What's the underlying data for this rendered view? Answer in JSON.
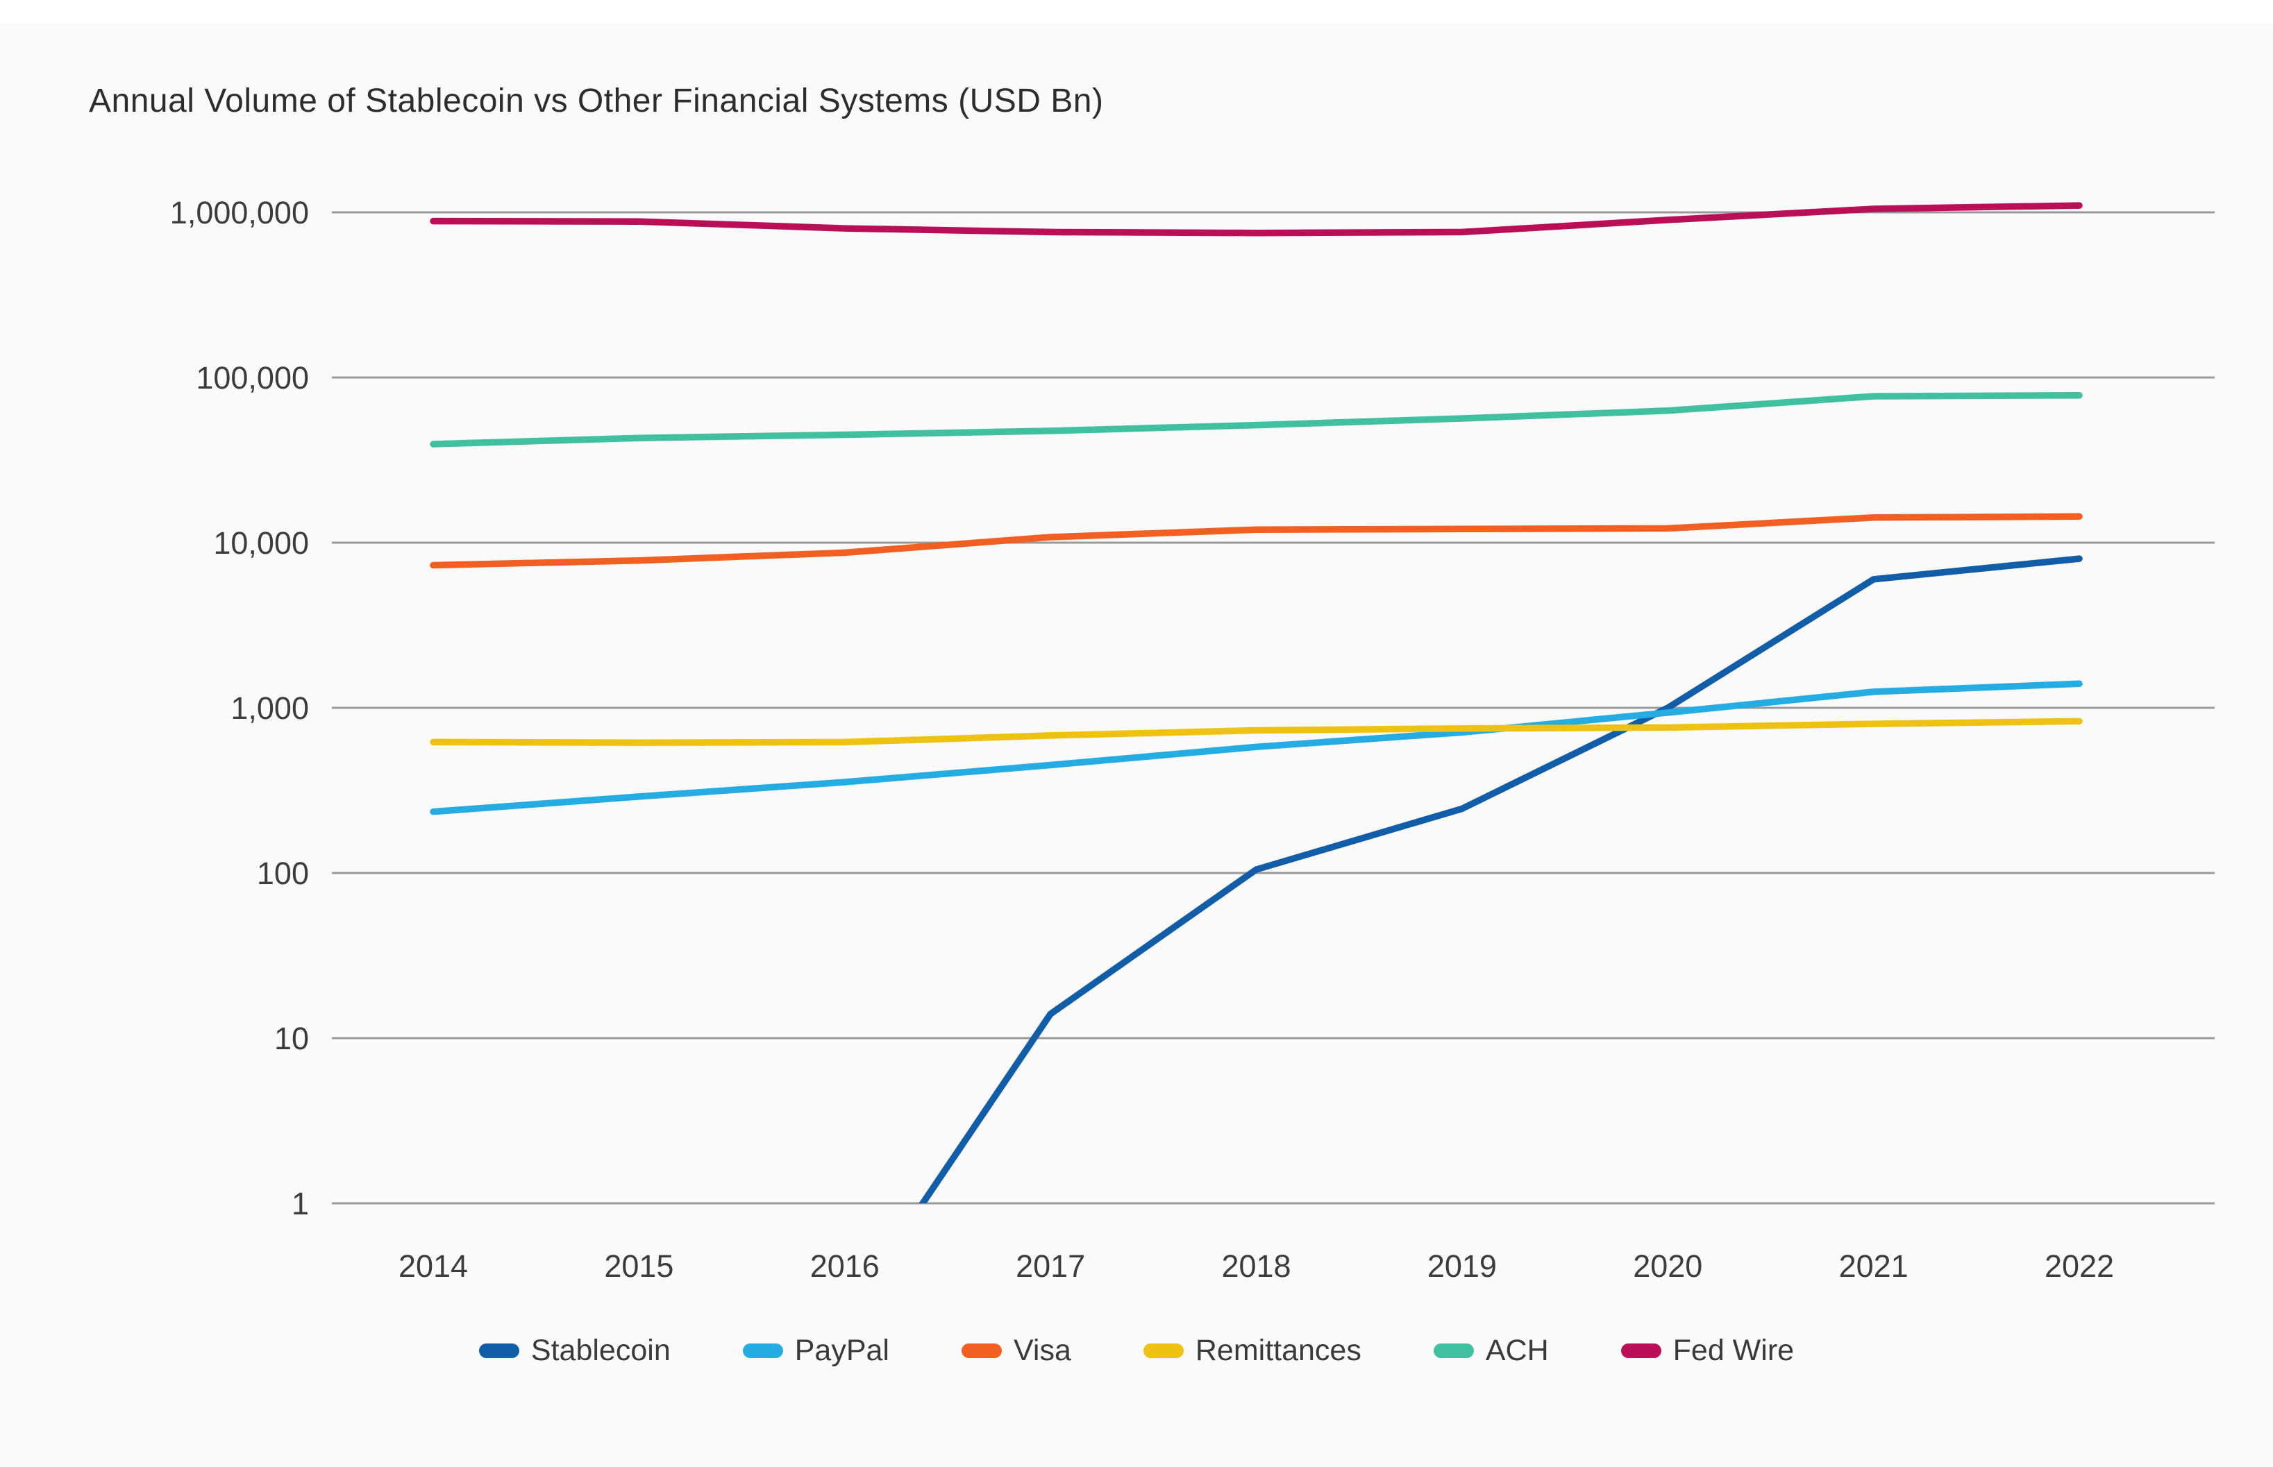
{
  "page": {
    "background": "#fafafa",
    "grid_color": "#9a9a9a",
    "text_color": "#3c3c3c",
    "title_color": "#2d2d2d"
  },
  "chart_data": {
    "type": "line",
    "title": "Annual Volume of Stablecoin vs Other Financial Systems (USD Bn)",
    "xlabel": "",
    "ylabel": "",
    "x_axis": {
      "labels": [
        "2014",
        "2015",
        "2016",
        "2017",
        "2018",
        "2019",
        "2020",
        "2021",
        "2022"
      ]
    },
    "y_axis": {
      "scale": "log",
      "min": 1,
      "max": 1000000,
      "ticks": [
        {
          "value": 1000000,
          "label": "1,000,000"
        },
        {
          "value": 100000,
          "label": "100,000"
        },
        {
          "value": 10000,
          "label": "10,000"
        },
        {
          "value": 1000,
          "label": "1,000"
        },
        {
          "value": 100,
          "label": "100"
        },
        {
          "value": 10,
          "label": "10"
        },
        {
          "value": 1,
          "label": "1"
        }
      ]
    },
    "grid": true,
    "legend_position": "bottom",
    "series": [
      {
        "name": "Stablecoin",
        "color": "#115da8",
        "values": [
          null,
          null,
          0.2,
          14,
          105,
          245,
          1000,
          6000,
          8000
        ]
      },
      {
        "name": "PayPal",
        "color": "#25ace3",
        "values": [
          235,
          290,
          355,
          450,
          580,
          710,
          935,
          1250,
          1400
        ]
      },
      {
        "name": "Visa",
        "color": "#f15f22",
        "values": [
          7300,
          7800,
          8700,
          10800,
          12000,
          12100,
          12200,
          14200,
          14400
        ]
      },
      {
        "name": "Remittances",
        "color": "#eec213",
        "values": [
          620,
          615,
          620,
          680,
          730,
          750,
          760,
          800,
          830
        ]
      },
      {
        "name": "ACH",
        "color": "#41c0a0",
        "values": [
          39500,
          43000,
          45000,
          47500,
          51500,
          56500,
          63000,
          77000,
          78000
        ]
      },
      {
        "name": "Fed Wire",
        "color": "#b90f57",
        "values": [
          885000,
          880000,
          800000,
          760000,
          750000,
          760000,
          900000,
          1050000,
          1100000
        ]
      }
    ]
  }
}
